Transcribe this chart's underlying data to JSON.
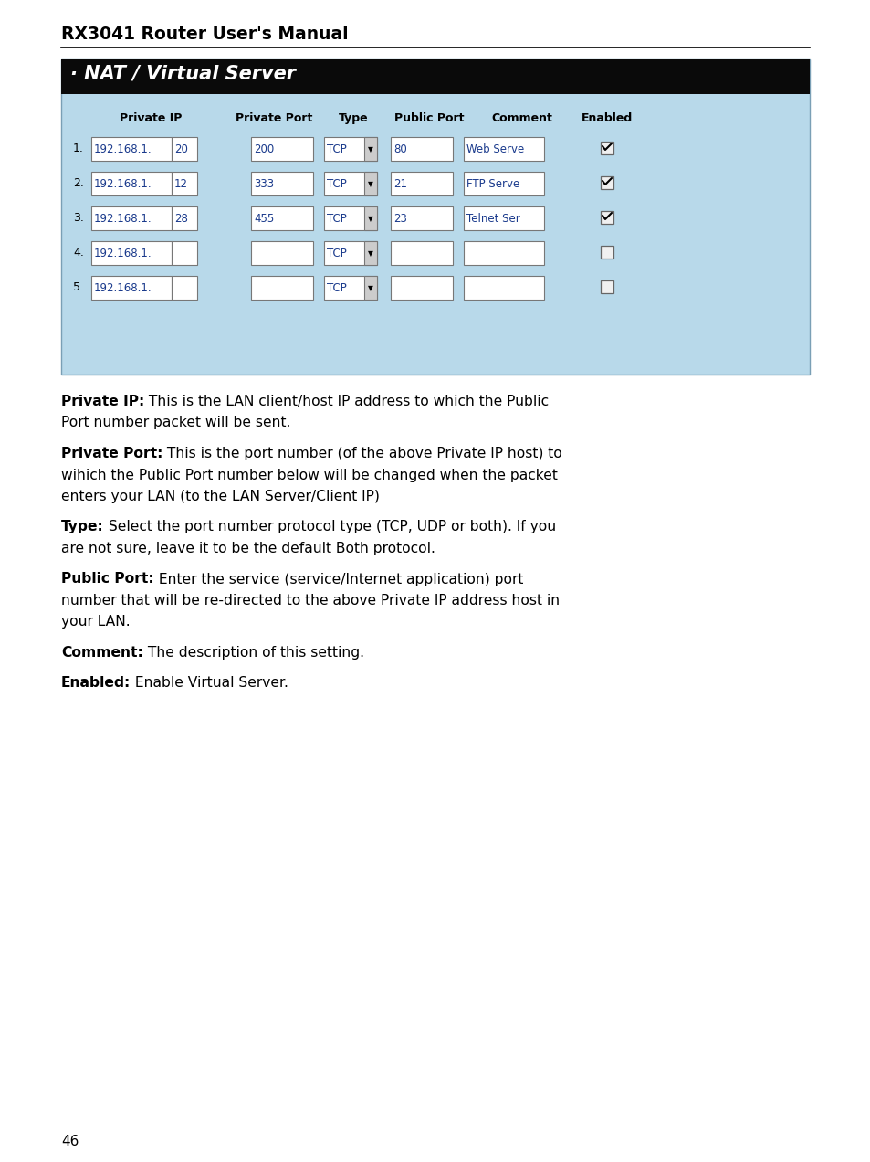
{
  "title": "RX3041 Router User's Manual",
  "page_number": "46",
  "table_title": "· NAT / Virtual Server",
  "table_bg": "#b8d9ea",
  "table_header_bg": "#0a0a0a",
  "table_header_color": "#ffffff",
  "col_headers": [
    "Private IP",
    "Private Port",
    "Type",
    "Public Port",
    "Comment",
    "Enabled"
  ],
  "rows": [
    [
      "1.",
      "192.168.1.",
      "20",
      "200",
      "TCP",
      "80",
      "Web Serve",
      true
    ],
    [
      "2.",
      "192.168.1.",
      "12",
      "333",
      "TCP",
      "21",
      "FTP Serve",
      true
    ],
    [
      "3.",
      "192.168.1.",
      "28",
      "455",
      "TCP",
      "23",
      "Telnet Ser",
      true
    ],
    [
      "4.",
      "192.168.1.",
      "",
      "",
      "TCP",
      "",
      "",
      false
    ],
    [
      "5.",
      "192.168.1.",
      "",
      "",
      "TCP",
      "",
      "",
      false
    ]
  ],
  "paragraphs": [
    [
      "Private IP:",
      " This is the LAN client/host IP address to which the Public Port number packet will be sent."
    ],
    [
      "Private Port:",
      " This is the port number (of the above Private IP host) to wihich the Public Port number below will be changed when the packet enters your LAN (to the LAN Server/Client IP)"
    ],
    [
      "Type:",
      " Select the port number protocol type (TCP, UDP or both). If you are not sure, leave it to be the default Both protocol."
    ],
    [
      "Public Port:",
      " Enter the service (service/Internet application) port number that will be re-directed to the above Private IP address host in your LAN."
    ],
    [
      "Comment:",
      " The description of this setting."
    ],
    [
      "Enabled:",
      " Enable Virtual Server."
    ]
  ]
}
